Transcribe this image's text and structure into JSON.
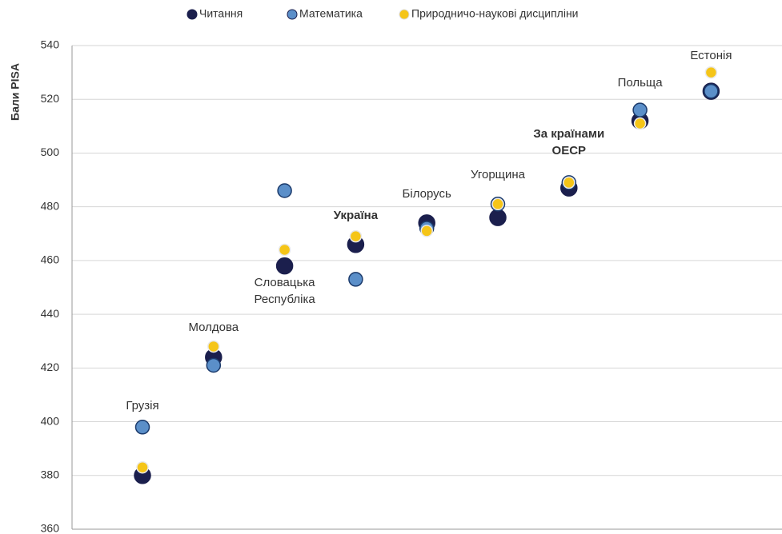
{
  "chart_data": {
    "type": "scatter",
    "y_label": "Бали PISA",
    "categories": [
      "Грузія",
      "Молдова",
      "Словацька Республіка",
      "Україна",
      "Білорусь",
      "Угорщина",
      "За країнами ОЕСР",
      "Польща",
      "Естонія"
    ],
    "highlight_indices": [
      3,
      6
    ],
    "series": [
      {
        "name": "Читання",
        "color": "#1b1f4d",
        "values": [
          380,
          424,
          458,
          466,
          474,
          476,
          487,
          512,
          523
        ]
      },
      {
        "name": "Математика",
        "color": "#5b8fc9",
        "values": [
          398,
          421,
          486,
          453,
          472,
          481,
          489,
          516,
          523
        ]
      },
      {
        "name": "Природничо-наукові дисципліни",
        "color": "#f5c518",
        "values": [
          383,
          428,
          464,
          469,
          471,
          481,
          489,
          511,
          530
        ]
      }
    ],
    "ylim": [
      360,
      540
    ],
    "yticks": [
      360,
      380,
      400,
      420,
      440,
      460,
      480,
      500,
      520,
      540
    ],
    "grid": true
  }
}
